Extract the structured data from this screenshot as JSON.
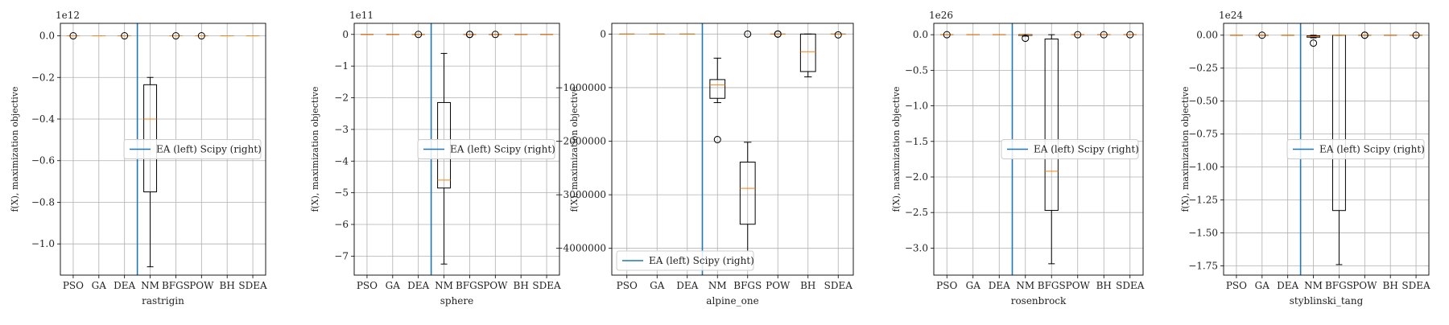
{
  "chart_data": [
    {
      "type": "box",
      "categories": [
        "PSO",
        "GA",
        "DEA",
        "NM",
        "BFGS",
        "POW",
        "BH",
        "SDEA"
      ],
      "xlabel": "rastrigin",
      "ylabel": "f(X), maximization objective",
      "offset_text": "1e12",
      "ylim": [
        -1.15,
        0.06
      ],
      "yticks": [
        0.0,
        -0.2,
        -0.4,
        -0.6,
        -0.8,
        -1.0
      ],
      "ytick_labels": [
        "0.0",
        "−0.2",
        "−0.4",
        "−0.6",
        "−0.8",
        "−1.0"
      ],
      "legend": {
        "label": "EA (left) Scipy (right)",
        "position": "center-right"
      },
      "divider_between": [
        "DEA",
        "NM"
      ],
      "grid": true,
      "boxes": [
        {
          "category": "PSO",
          "flat": 0.0,
          "outliers": [
            0.0
          ]
        },
        {
          "category": "GA",
          "flat": 0.0,
          "outliers": []
        },
        {
          "category": "DEA",
          "flat": 0.0,
          "outliers": [
            0.0
          ]
        },
        {
          "category": "NM",
          "whislo": -1.11,
          "q1": -0.75,
          "med": -0.4,
          "q3": -0.235,
          "whishi": -0.2,
          "outliers": []
        },
        {
          "category": "BFGS",
          "flat": 0.0,
          "outliers": [
            0.0
          ]
        },
        {
          "category": "POW",
          "flat": 0.0,
          "outliers": [
            0.0
          ]
        },
        {
          "category": "BH",
          "flat": 0.0,
          "outliers": []
        },
        {
          "category": "SDEA",
          "flat": 0.0,
          "outliers": []
        }
      ]
    },
    {
      "type": "box",
      "categories": [
        "PSO",
        "GA",
        "DEA",
        "NM",
        "BFGS",
        "POW",
        "BH",
        "SDEA"
      ],
      "xlabel": "sphere",
      "ylabel": "f(X), maximization objective",
      "offset_text": "1e11",
      "ylim": [
        -7.6,
        0.35
      ],
      "yticks": [
        0,
        -1,
        -2,
        -3,
        -4,
        -5,
        -6,
        -7
      ],
      "ytick_labels": [
        "0",
        "−1",
        "−2",
        "−3",
        "−4",
        "−5",
        "−6",
        "−7"
      ],
      "legend": {
        "label": "EA (left) Scipy (right)",
        "position": "center-right"
      },
      "divider_between": [
        "DEA",
        "NM"
      ],
      "grid": true,
      "boxes": [
        {
          "category": "PSO",
          "flat": 0.0,
          "outliers": []
        },
        {
          "category": "GA",
          "flat": 0.0,
          "outliers": []
        },
        {
          "category": "DEA",
          "flat": 0.0,
          "outliers": [
            0.0
          ]
        },
        {
          "category": "NM",
          "whislo": -7.25,
          "q1": -4.85,
          "med": -4.6,
          "q3": -2.15,
          "whishi": -0.6,
          "outliers": []
        },
        {
          "category": "BFGS",
          "flat": 0.0,
          "outliers": [
            0.0,
            0.0
          ]
        },
        {
          "category": "POW",
          "flat": 0.0,
          "outliers": [
            0.0
          ]
        },
        {
          "category": "BH",
          "flat": 0.0,
          "outliers": []
        },
        {
          "category": "SDEA",
          "flat": 0.0,
          "outliers": []
        }
      ]
    },
    {
      "type": "box",
      "categories": [
        "PSO",
        "GA",
        "DEA",
        "NM",
        "BFGS",
        "POW",
        "BH",
        "SDEA"
      ],
      "xlabel": "alpine_one",
      "ylabel": "f(X), maximization objective",
      "offset_text": "",
      "ylim": [
        -4500000,
        200000
      ],
      "yticks": [
        0,
        -1000000,
        -2000000,
        -3000000,
        -4000000
      ],
      "ytick_labels": [
        "0",
        "−1000000",
        "−2000000",
        "−3000000",
        "−4000000"
      ],
      "legend": {
        "label": "EA (left) Scipy (right)",
        "position": "lower-left"
      },
      "divider_between": [
        "DEA",
        "NM"
      ],
      "grid": true,
      "boxes": [
        {
          "category": "PSO",
          "flat": 0,
          "outliers": []
        },
        {
          "category": "GA",
          "flat": 0,
          "outliers": []
        },
        {
          "category": "DEA",
          "flat": 0,
          "outliers": []
        },
        {
          "category": "NM",
          "whislo": -1280000,
          "q1": -1200000,
          "med": -950000,
          "q3": -850000,
          "whishi": -450000,
          "outliers": [
            -1970000
          ]
        },
        {
          "category": "BFGS",
          "whislo": -4050000,
          "q1": -3550000,
          "med": -2880000,
          "q3": -2390000,
          "whishi": -2020000,
          "outliers": [
            0
          ]
        },
        {
          "category": "POW",
          "flat": 0,
          "outliers": [
            0,
            0
          ]
        },
        {
          "category": "BH",
          "whislo": -800000,
          "q1": -700000,
          "med": -330000,
          "q3": 0,
          "whishi": 0,
          "outliers": []
        },
        {
          "category": "SDEA",
          "flat": 0,
          "outliers": [
            -15000
          ]
        }
      ]
    },
    {
      "type": "box",
      "categories": [
        "PSO",
        "GA",
        "DEA",
        "NM",
        "BFGS",
        "POW",
        "BH",
        "SDEA"
      ],
      "xlabel": "rosenbrock",
      "ylabel": "f(X), maximization objective",
      "offset_text": "1e26",
      "ylim": [
        -3.38,
        0.16
      ],
      "yticks": [
        0.0,
        -0.5,
        -1.0,
        -1.5,
        -2.0,
        -2.5,
        -3.0
      ],
      "ytick_labels": [
        "0.0",
        "−0.5",
        "−1.0",
        "−1.5",
        "−2.0",
        "−2.5",
        "−3.0"
      ],
      "legend": {
        "label": "EA (left) Scipy (right)",
        "position": "center-right"
      },
      "divider_between": [
        "DEA",
        "NM"
      ],
      "grid": true,
      "boxes": [
        {
          "category": "PSO",
          "flat": 0.0,
          "outliers": [
            0.0
          ]
        },
        {
          "category": "GA",
          "flat": 0.0,
          "outliers": []
        },
        {
          "category": "DEA",
          "flat": 0.0,
          "outliers": []
        },
        {
          "category": "NM",
          "whislo": -0.02,
          "q1": -0.01,
          "med": -0.005,
          "q3": 0.0,
          "whishi": 0.0,
          "outliers": [
            -0.05
          ]
        },
        {
          "category": "BFGS",
          "whislo": -3.22,
          "q1": -2.47,
          "med": -1.92,
          "q3": -0.06,
          "whishi": 0.0,
          "outliers": []
        },
        {
          "category": "POW",
          "flat": 0.0,
          "outliers": [
            0.0
          ]
        },
        {
          "category": "BH",
          "flat": 0.0,
          "outliers": [
            0.0
          ]
        },
        {
          "category": "SDEA",
          "flat": 0.0,
          "outliers": [
            0.0
          ]
        }
      ]
    },
    {
      "type": "box",
      "categories": [
        "PSO",
        "GA",
        "DEA",
        "NM",
        "BFGS",
        "POW",
        "BH",
        "SDEA"
      ],
      "xlabel": "styblinski_tang",
      "ylabel": "f(X), maximization objective",
      "offset_text": "1e24",
      "ylim": [
        -1.82,
        0.09
      ],
      "yticks": [
        0.0,
        -0.25,
        -0.5,
        -0.75,
        -1.0,
        -1.25,
        -1.5,
        -1.75
      ],
      "ytick_labels": [
        "0.00",
        "−0.25",
        "−0.50",
        "−0.75",
        "−1.00",
        "−1.25",
        "−1.50",
        "−1.75"
      ],
      "legend": {
        "label": "EA (left) Scipy (right)",
        "position": "center-right"
      },
      "divider_between": [
        "DEA",
        "NM"
      ],
      "grid": true,
      "boxes": [
        {
          "category": "PSO",
          "flat": 0.0,
          "outliers": []
        },
        {
          "category": "GA",
          "flat": 0.0,
          "outliers": [
            0.0
          ]
        },
        {
          "category": "DEA",
          "flat": 0.0,
          "outliers": []
        },
        {
          "category": "NM",
          "whislo": -0.02,
          "q1": -0.015,
          "med": -0.01,
          "q3": -0.005,
          "whishi": 0.0,
          "outliers": [
            -0.06
          ]
        },
        {
          "category": "BFGS",
          "whislo": -1.74,
          "q1": -1.33,
          "med": 0.0,
          "q3": 0.0,
          "whishi": 0.0,
          "outliers": []
        },
        {
          "category": "POW",
          "flat": 0.0,
          "outliers": [
            0.0,
            0.0
          ]
        },
        {
          "category": "BH",
          "flat": 0.0,
          "outliers": []
        },
        {
          "category": "SDEA",
          "flat": 0.0,
          "outliers": [
            0.0
          ]
        }
      ]
    }
  ],
  "colors": {
    "box": "#000000",
    "median": "#ff7f0e",
    "divider": "#1f77b4",
    "grid": "#b0b0b0"
  }
}
